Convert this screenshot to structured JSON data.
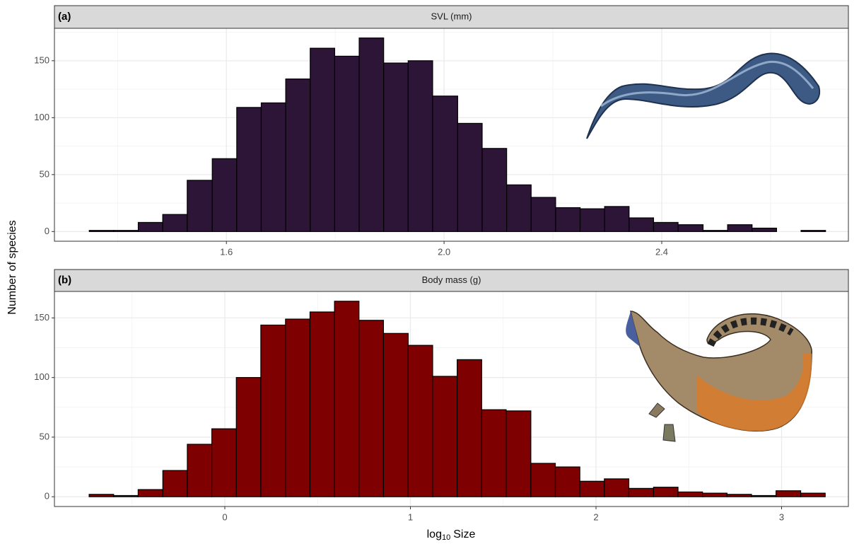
{
  "chart_data": [
    {
      "type": "histogram",
      "tag": "(a)",
      "title": "SVL (mm)",
      "color": "#2d1538",
      "bins": [
        1.348,
        1.393,
        1.438,
        1.483,
        1.528,
        1.574,
        1.619,
        1.664,
        1.709,
        1.754,
        1.799,
        1.844,
        1.889,
        1.934,
        1.979,
        2.025,
        2.07,
        2.115,
        2.16,
        2.205,
        2.25,
        2.295,
        2.34,
        2.385,
        2.43,
        2.476,
        2.521,
        2.566,
        2.611,
        2.656,
        2.701
      ],
      "values": [
        1,
        1,
        8,
        15,
        45,
        64,
        109,
        113,
        134,
        161,
        154,
        170,
        148,
        150,
        119,
        95,
        73,
        41,
        30,
        21,
        20,
        22,
        12,
        8,
        6,
        1,
        6,
        3,
        0,
        1
      ],
      "xlim": [
        1.284,
        2.743
      ],
      "ylim": [
        -8.5,
        178.5
      ],
      "xticks": [
        1.6,
        {
          "value": 2,
          "label": "2.0"
        },
        2.4
      ],
      "yticks": [
        0,
        50,
        100,
        150
      ],
      "grid": true
    },
    {
      "type": "histogram",
      "tag": "(b)",
      "title": "Body mass (g)",
      "color": "#7f0000",
      "bins": [
        -0.731,
        -0.599,
        -0.467,
        -0.334,
        -0.202,
        -0.07,
        0.062,
        0.194,
        0.327,
        0.459,
        0.591,
        0.723,
        0.855,
        0.988,
        1.12,
        1.252,
        1.384,
        1.516,
        1.649,
        1.781,
        1.913,
        2.045,
        2.177,
        2.31,
        2.442,
        2.574,
        2.706,
        2.838,
        2.97,
        3.103,
        3.235
      ],
      "values": [
        2,
        1,
        6,
        22,
        44,
        57,
        100,
        144,
        149,
        155,
        164,
        148,
        137,
        127,
        101,
        115,
        73,
        72,
        28,
        25,
        13,
        15,
        7,
        8,
        4,
        3,
        2,
        1,
        5,
        3
      ],
      "xlim": [
        -0.918,
        3.36
      ],
      "ylim": [
        -8.2,
        172.2
      ],
      "xticks": [
        0,
        1,
        2,
        3
      ],
      "yticks": [
        0,
        50,
        100,
        150
      ],
      "grid": true
    }
  ],
  "y_label": "Number of species",
  "x_label": {
    "main": "log",
    "sub": "10",
    "rest": "Size"
  }
}
